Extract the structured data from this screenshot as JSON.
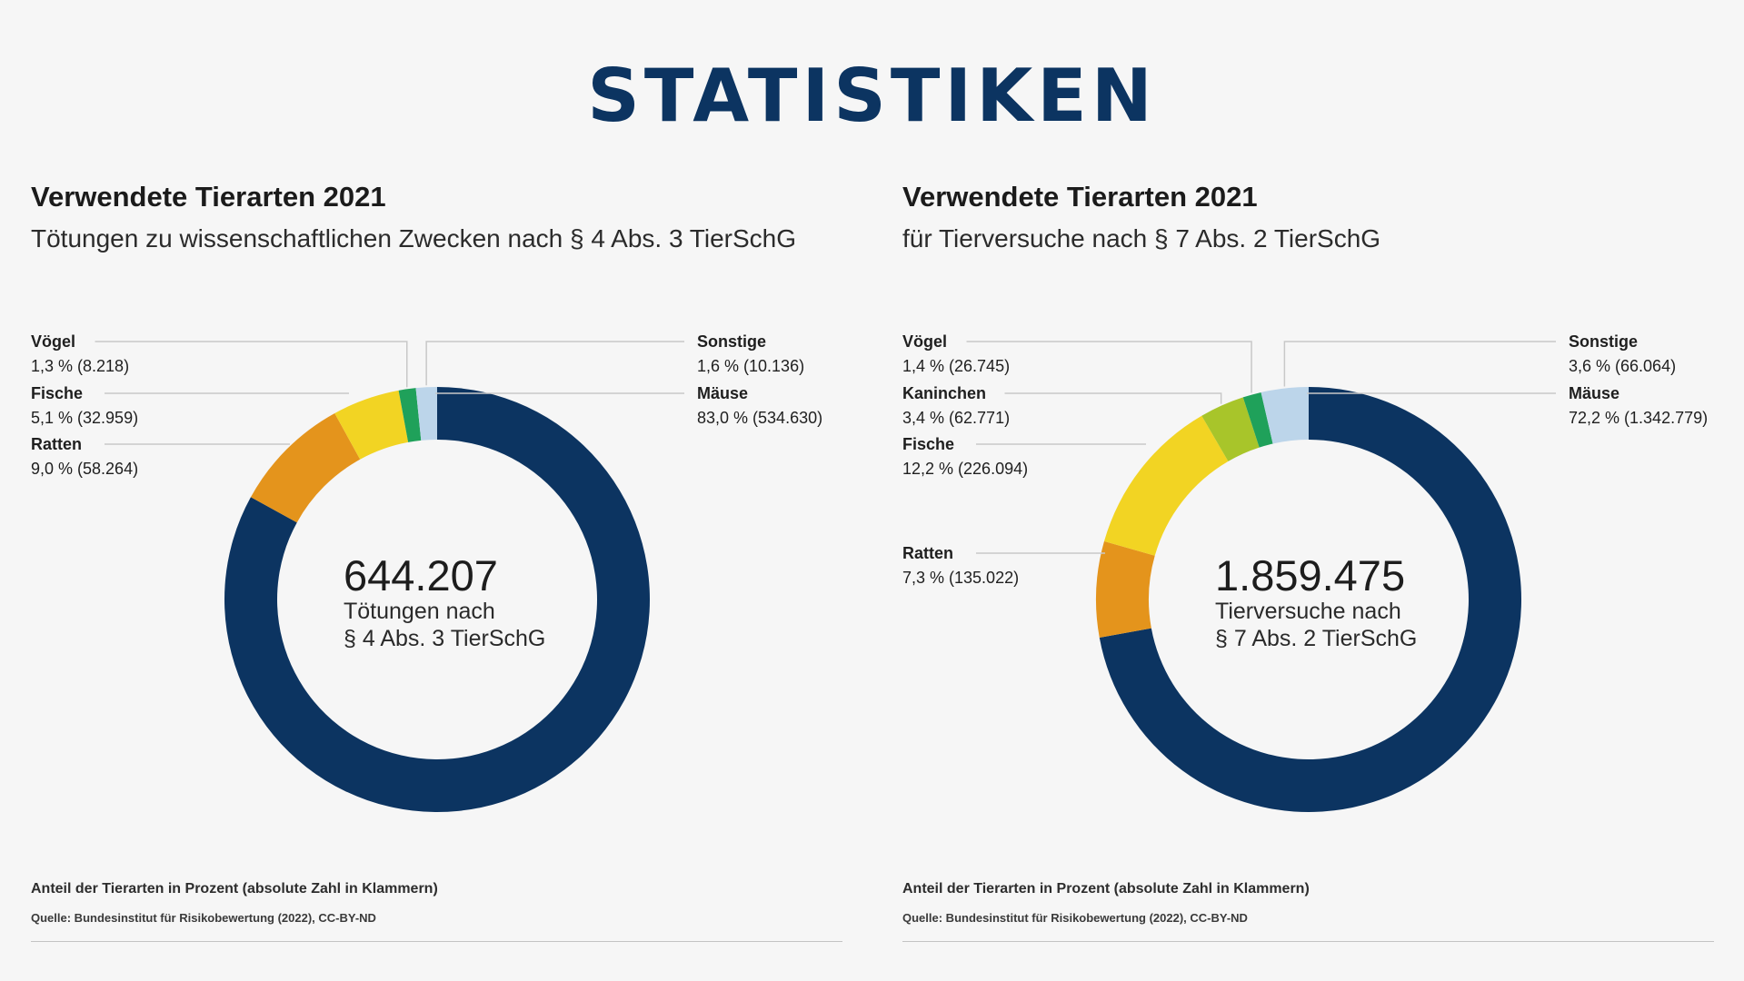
{
  "header": {
    "title": "STATISTIKEN"
  },
  "chart_data": [
    {
      "type": "pie",
      "title": "Verwendete Tierarten 2021",
      "subtitle": "Tötungen zu wissenschaftlichen Zwecken nach § 4 Abs. 3 TierSchG",
      "donut": true,
      "center_value": "644.207",
      "center_label_1": "Tötungen nach",
      "center_label_2": "§ 4 Abs. 3 TierSchG",
      "note": "Anteil der Tierarten in Prozent (absolute Zahl in Klammern)",
      "source": "Quelle: Bundesinstitut für Risikobewertung (2022), CC-BY-ND",
      "slices": [
        {
          "name": "Mäuse",
          "percent": 83.0,
          "value": 534630,
          "label": "83,0 % (534.630)",
          "color": "#0c3461",
          "side": "right"
        },
        {
          "name": "Ratten",
          "percent": 9.0,
          "value": 58264,
          "label": "9,0 % (58.264)",
          "color": "#e4941c",
          "side": "left"
        },
        {
          "name": "Fische",
          "percent": 5.1,
          "value": 32959,
          "label": "5,1 % (32.959)",
          "color": "#f2d423",
          "side": "left"
        },
        {
          "name": "Vögel",
          "percent": 1.3,
          "value": 8218,
          "label": "1,3 % (8.218)",
          "color": "#1fa15a",
          "side": "left"
        },
        {
          "name": "Sonstige",
          "percent": 1.6,
          "value": 10136,
          "label": "1,6 % (10.136)",
          "color": "#bcd5ea",
          "side": "right"
        }
      ]
    },
    {
      "type": "pie",
      "title": "Verwendete Tierarten 2021",
      "subtitle": "für Tierversuche nach § 7 Abs. 2 TierSchG",
      "donut": true,
      "center_value": "1.859.475",
      "center_label_1": "Tierversuche nach",
      "center_label_2": "§ 7 Abs. 2 TierSchG",
      "note": "Anteil der Tierarten in Prozent (absolute Zahl in Klammern)",
      "source": "Quelle: Bundesinstitut für Risikobewertung (2022), CC-BY-ND",
      "slices": [
        {
          "name": "Mäuse",
          "percent": 72.2,
          "value": 1342779,
          "label": "72,2 % (1.342.779)",
          "color": "#0c3461",
          "side": "right"
        },
        {
          "name": "Ratten",
          "percent": 7.3,
          "value": 135022,
          "label": "7,3 % (135.022)",
          "color": "#e4941c",
          "side": "left"
        },
        {
          "name": "Fische",
          "percent": 12.2,
          "value": 226094,
          "label": "12,2 % (226.094)",
          "color": "#f2d423",
          "side": "left"
        },
        {
          "name": "Kaninchen",
          "percent": 3.4,
          "value": 62771,
          "label": "3,4 % (62.771)",
          "color": "#a8c52a",
          "side": "left"
        },
        {
          "name": "Vögel",
          "percent": 1.4,
          "value": 26745,
          "label": "1,4 % (26.745)",
          "color": "#1fa15a",
          "side": "left"
        },
        {
          "name": "Sonstige",
          "percent": 3.6,
          "value": 66064,
          "label": "3,6 % (66.064)",
          "color": "#bcd5ea",
          "side": "right"
        }
      ]
    }
  ]
}
